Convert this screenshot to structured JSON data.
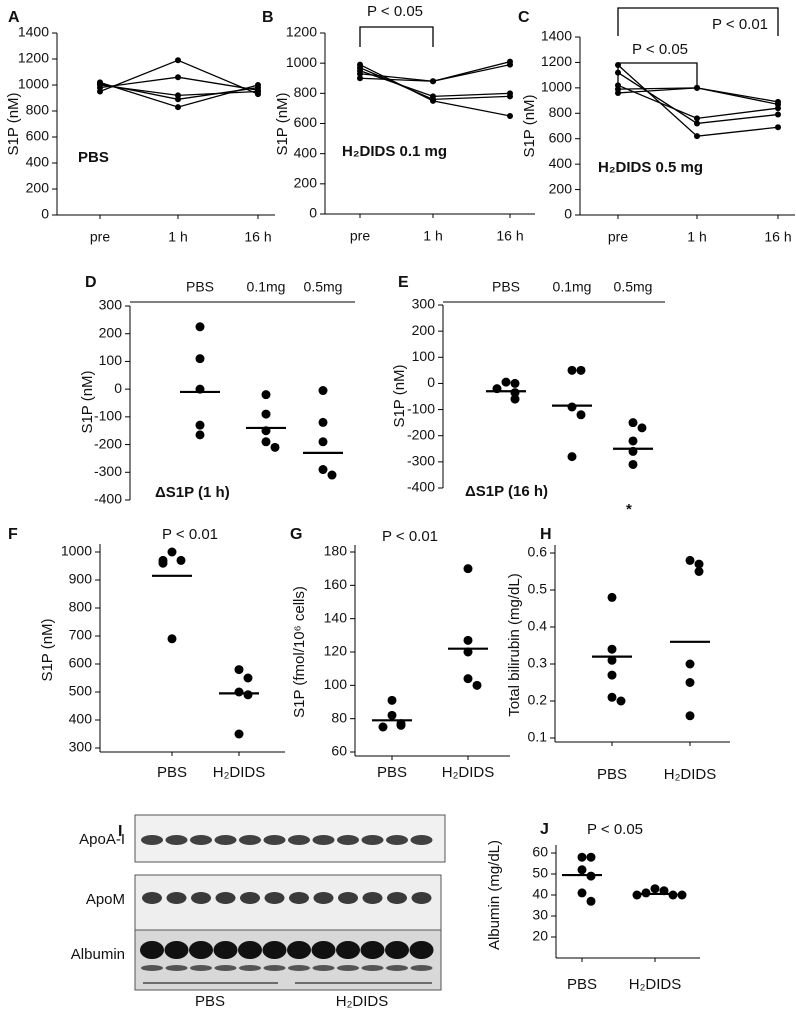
{
  "chart_data": [
    {
      "type": "line",
      "label": "A",
      "y_label": "S1P (nM)",
      "annotation": "PBS",
      "color": "#000",
      "categories": [
        "pre",
        "1 h",
        "16 h"
      ],
      "ylim": [
        0,
        1400
      ],
      "yticks": [
        0,
        200,
        400,
        600,
        800,
        1000,
        1200,
        1400
      ],
      "series": [
        {
          "values": [
            950,
            1190,
            930
          ]
        },
        {
          "values": [
            980,
            1060,
            960
          ]
        },
        {
          "values": [
            1000,
            920,
            950
          ]
        },
        {
          "values": [
            1010,
            890,
            980
          ]
        },
        {
          "values": [
            1020,
            830,
            1000
          ]
        }
      ]
    },
    {
      "type": "line",
      "label": "B",
      "y_label": "S1P (nM)",
      "annotation": "H₂DIDS 0.1 mg",
      "color": "#000",
      "p_values": [
        "P < 0.05"
      ],
      "categories": [
        "pre",
        "1 h",
        "16 h"
      ],
      "ylim": [
        0,
        1200
      ],
      "yticks": [
        0,
        200,
        400,
        600,
        800,
        1000,
        1200
      ],
      "series": [
        {
          "values": [
            900,
            880,
            1010
          ]
        },
        {
          "values": [
            930,
            880,
            990
          ]
        },
        {
          "values": [
            950,
            780,
            800
          ]
        },
        {
          "values": [
            970,
            760,
            780
          ]
        },
        {
          "values": [
            990,
            750,
            650
          ]
        }
      ]
    },
    {
      "type": "line",
      "label": "C",
      "y_label": "S1P (nM)",
      "annotation": "H₂DIDS 0.5 mg",
      "color": "#000",
      "p_values": [
        "P < 0.05",
        "P < 0.01"
      ],
      "categories": [
        "pre",
        "1 h",
        "16 h"
      ],
      "ylim": [
        0,
        1400
      ],
      "yticks": [
        0,
        200,
        400,
        600,
        800,
        1000,
        1200,
        1400
      ],
      "series": [
        {
          "values": [
            960,
            1000,
            890
          ]
        },
        {
          "values": [
            990,
            1000,
            870
          ]
        },
        {
          "values": [
            1020,
            760,
            840
          ]
        },
        {
          "values": [
            1120,
            720,
            790
          ]
        },
        {
          "values": [
            1180,
            620,
            690
          ]
        }
      ]
    },
    {
      "type": "dot",
      "label": "D",
      "y_label": "S1P (nM)",
      "title": "ΔS1P (1 h)",
      "color": "#000",
      "categories": [
        "PBS",
        "0.1mg",
        "0.5mg"
      ],
      "ylim": [
        -400,
        300
      ],
      "yticks": [
        -400,
        -300,
        -200,
        -100,
        0,
        100,
        200,
        300
      ],
      "values": [
        [
          225,
          110,
          0,
          -130,
          -165
        ],
        [
          -20,
          -90,
          -150,
          -190,
          -210
        ],
        [
          -5,
          -120,
          -190,
          -290,
          -310
        ]
      ],
      "means": [
        -10,
        -140,
        -230
      ]
    },
    {
      "type": "dot",
      "label": "E",
      "y_label": "S1P (nM)",
      "title": "ΔS1P (16 h)",
      "annotation": "*",
      "color": "#000",
      "categories": [
        "PBS",
        "0.1mg",
        "0.5mg"
      ],
      "ylim": [
        -400,
        300
      ],
      "yticks": [
        -400,
        -300,
        -200,
        -100,
        0,
        100,
        200,
        300
      ],
      "values": [
        [
          5,
          0,
          -20,
          -35,
          -60
        ],
        [
          50,
          50,
          -90,
          -120,
          -280
        ],
        [
          -150,
          -170,
          -220,
          -260,
          -310
        ]
      ],
      "means": [
        -30,
        -85,
        -250
      ]
    },
    {
      "type": "dot",
      "label": "F",
      "y_label": "S1P (nM)",
      "p_values": [
        "P < 0.01"
      ],
      "color": "#000",
      "categories": [
        "PBS",
        "H₂DIDS"
      ],
      "ylim": [
        300,
        1000
      ],
      "yticks": [
        300,
        400,
        500,
        600,
        700,
        800,
        900,
        1000
      ],
      "values": [
        [
          1000,
          970,
          970,
          960,
          690
        ],
        [
          580,
          550,
          500,
          490,
          350
        ]
      ],
      "means": [
        915,
        495
      ]
    },
    {
      "type": "dot",
      "label": "G",
      "y_label": "S1P (fmol/10⁶ cells)",
      "p_values": [
        "P < 0.01"
      ],
      "color": "#000",
      "categories": [
        "PBS",
        "H₂DIDS"
      ],
      "ylim": [
        60,
        180
      ],
      "yticks": [
        60,
        80,
        100,
        120,
        140,
        160,
        180
      ],
      "values": [
        [
          91,
          82,
          77,
          76,
          75
        ],
        [
          170,
          127,
          120,
          104,
          100
        ]
      ],
      "means": [
        79,
        122
      ]
    },
    {
      "type": "dot",
      "label": "H",
      "y_label": "Total bilirubin (mg/dL)",
      "color": "#000",
      "categories": [
        "PBS",
        "H₂DIDS"
      ],
      "ylim": [
        0.1,
        0.6
      ],
      "yticks": [
        0.1,
        0.2,
        0.3,
        0.4,
        0.5,
        0.6
      ],
      "values": [
        [
          0.48,
          0.34,
          0.31,
          0.27,
          0.21,
          0.2
        ],
        [
          0.58,
          0.57,
          0.55,
          0.3,
          0.25,
          0.16
        ]
      ],
      "means": [
        0.32,
        0.36
      ]
    },
    {
      "type": "dot",
      "label": "J",
      "y_label": "Albumin (mg/dL)",
      "p_values": [
        "P < 0.05"
      ],
      "color": "#000",
      "categories": [
        "PBS",
        "H₂DIDS"
      ],
      "ylim": [
        20,
        60
      ],
      "yticks": [
        20,
        30,
        40,
        50,
        60
      ],
      "values": [
        [
          58,
          58,
          52,
          49,
          41,
          37
        ],
        [
          43,
          42,
          41,
          40,
          40,
          40
        ]
      ],
      "means": [
        49.5,
        40.5
      ]
    }
  ],
  "blot": {
    "label": "I",
    "rows": [
      "ApoA-I",
      "ApoM",
      "Albumin"
    ],
    "groups": [
      "PBS",
      "H₂DIDS"
    ]
  }
}
